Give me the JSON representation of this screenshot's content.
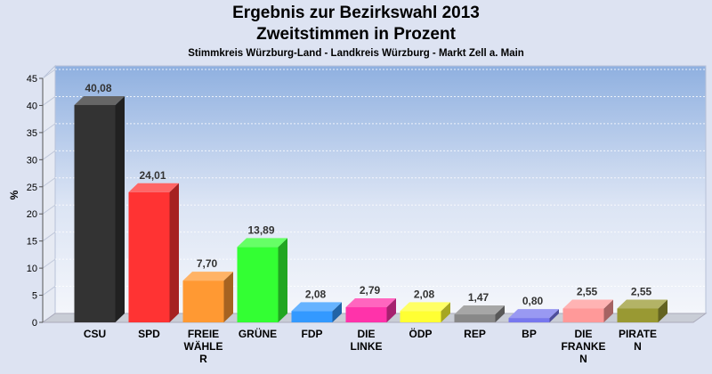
{
  "title": "Ergebnis zur Bezirkswahl 2013",
  "subtitle": "Zweitstimmen in Prozent",
  "subtitle2": "Stimmkreis Würzburg-Land - Landkreis Würzburg - Markt Zell a. Main",
  "chart_data": {
    "type": "bar",
    "title": "Ergebnis zur Bezirkswahl 2013",
    "subtitle": "Zweitstimmen in Prozent",
    "xlabel": "",
    "ylabel": "%",
    "ylim": [
      0,
      45
    ],
    "yticks": [
      0,
      5,
      10,
      15,
      20,
      25,
      30,
      35,
      40,
      45
    ],
    "grid": true,
    "categories": [
      [
        "CSU"
      ],
      [
        "SPD"
      ],
      [
        "FREIE",
        "WÄHLE",
        "R"
      ],
      [
        "GRÜNE"
      ],
      [
        "FDP"
      ],
      [
        "DIE",
        "LINKE"
      ],
      [
        "ÖDP"
      ],
      [
        "REP"
      ],
      [
        "BP"
      ],
      [
        "DIE",
        "FRANKE",
        "N"
      ],
      [
        "PIRATE",
        "N"
      ]
    ],
    "values": [
      40.08,
      24.01,
      7.7,
      13.89,
      2.08,
      2.79,
      2.08,
      1.47,
      0.8,
      2.55,
      2.55
    ],
    "value_labels": [
      "40,08",
      "24,01",
      "7,70",
      "13,89",
      "2,08",
      "2,79",
      "2,08",
      "1,47",
      "0,80",
      "2,55",
      "2,55"
    ],
    "colors": [
      "#333333",
      "#ff3333",
      "#ff9933",
      "#33ff33",
      "#3399ff",
      "#ff33aa",
      "#ffff33",
      "#888888",
      "#7777ee",
      "#ff9999",
      "#999933"
    ]
  }
}
